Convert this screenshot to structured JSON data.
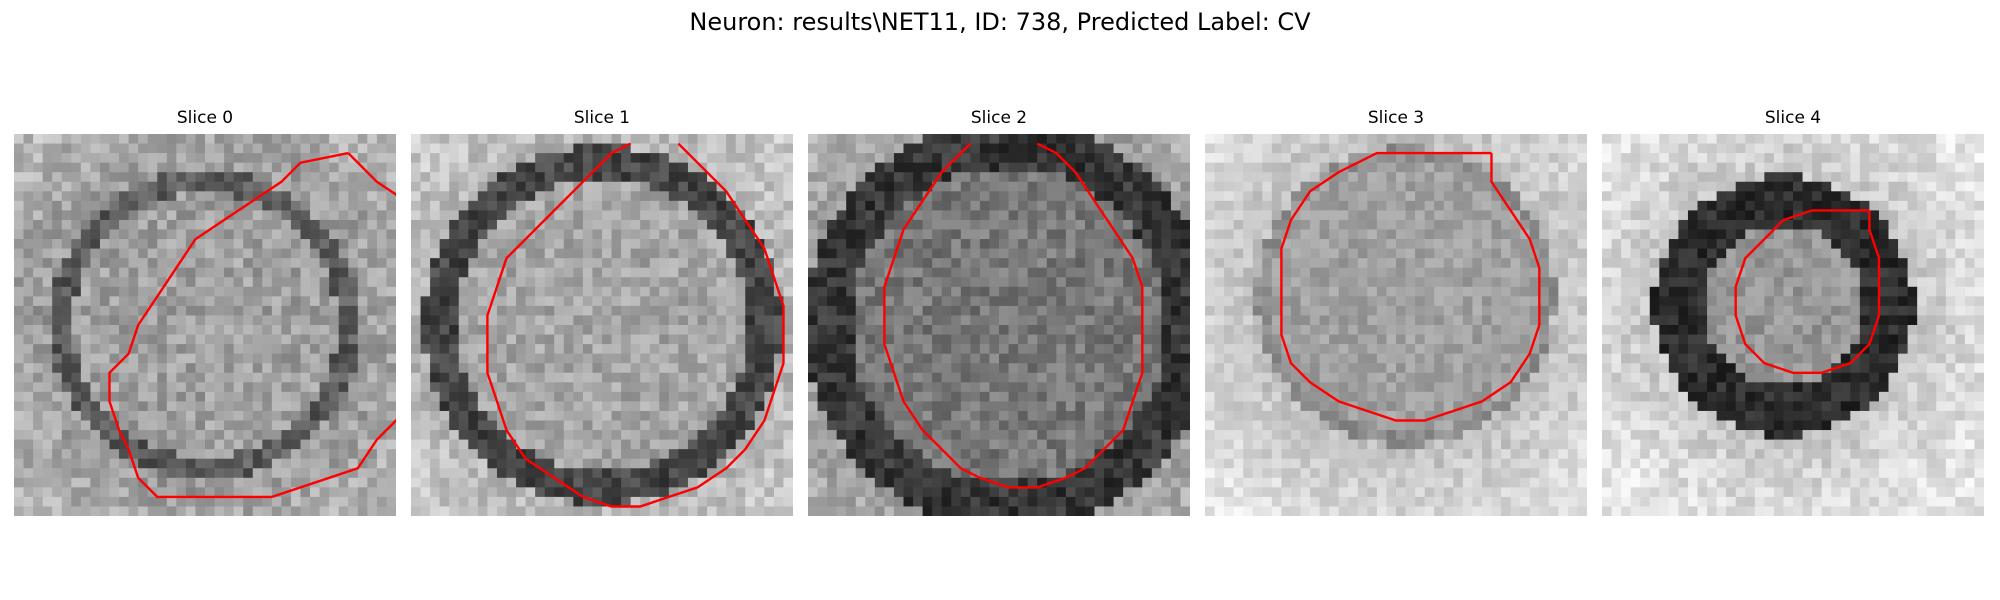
{
  "figure": {
    "title": "Neuron: results\\NET11, ID: 738, Predicted Label: CV"
  },
  "panels": [
    {
      "title": "Slice 0",
      "contour": [
        [
          35,
          2
        ],
        [
          30,
          3
        ],
        [
          28,
          5
        ],
        [
          25,
          7
        ],
        [
          22,
          9
        ],
        [
          19,
          11
        ],
        [
          17,
          14
        ],
        [
          15,
          17
        ],
        [
          13,
          20
        ],
        [
          12,
          23
        ],
        [
          10,
          25
        ],
        [
          10,
          28
        ],
        [
          11,
          31
        ],
        [
          12,
          33
        ],
        [
          13,
          36
        ],
        [
          15,
          38
        ],
        [
          18,
          38
        ],
        [
          21,
          38
        ],
        [
          24,
          38
        ],
        [
          27,
          38
        ],
        [
          30,
          37
        ],
        [
          33,
          36
        ],
        [
          36,
          35
        ],
        [
          38,
          32
        ],
        [
          40,
          30
        ],
        [
          42,
          28
        ],
        [
          44,
          26
        ],
        [
          45,
          23
        ],
        [
          45,
          20
        ],
        [
          45,
          17
        ],
        [
          45,
          14
        ],
        [
          44,
          11
        ],
        [
          43,
          9
        ],
        [
          41,
          7
        ],
        [
          38,
          5
        ],
        [
          35,
          2
        ]
      ],
      "wobble": 0.5,
      "color_name": "red"
    },
    {
      "title": "Slice 1",
      "contour": [
        [
          23,
          1
        ],
        [
          21,
          2
        ],
        [
          18,
          5
        ],
        [
          15,
          8
        ],
        [
          12,
          11
        ],
        [
          10,
          13
        ],
        [
          9,
          16
        ],
        [
          8,
          19
        ],
        [
          8,
          22
        ],
        [
          8,
          25
        ],
        [
          9,
          28
        ],
        [
          10,
          31
        ],
        [
          12,
          34
        ],
        [
          15,
          36
        ],
        [
          18,
          38
        ],
        [
          21,
          39
        ],
        [
          24,
          39
        ],
        [
          27,
          38
        ],
        [
          30,
          37
        ],
        [
          33,
          35
        ],
        [
          35,
          33
        ],
        [
          37,
          30
        ],
        [
          38,
          27
        ],
        [
          39,
          24
        ],
        [
          39,
          21
        ],
        [
          39,
          18
        ],
        [
          38,
          15
        ],
        [
          37,
          12
        ],
        [
          35,
          9
        ],
        [
          33,
          6
        ],
        [
          30,
          3
        ],
        [
          28,
          1
        ]
      ],
      "wobble": 0.5,
      "color_name": "red"
    },
    {
      "title": "Slice 2",
      "contour": [
        [
          17,
          1
        ],
        [
          14,
          4
        ],
        [
          12,
          7
        ],
        [
          10,
          10
        ],
        [
          9,
          13
        ],
        [
          8,
          16
        ],
        [
          8,
          19
        ],
        [
          8,
          22
        ],
        [
          9,
          25
        ],
        [
          10,
          28
        ],
        [
          12,
          31
        ],
        [
          14,
          33
        ],
        [
          16,
          35
        ],
        [
          18,
          36
        ],
        [
          21,
          37
        ],
        [
          24,
          37
        ],
        [
          27,
          36
        ],
        [
          29,
          35
        ],
        [
          31,
          33
        ],
        [
          33,
          31
        ],
        [
          34,
          28
        ],
        [
          35,
          25
        ],
        [
          35,
          22
        ],
        [
          35,
          19
        ],
        [
          35,
          16
        ],
        [
          34,
          13
        ],
        [
          32,
          10
        ],
        [
          30,
          7
        ],
        [
          28,
          4
        ],
        [
          26,
          2
        ],
        [
          24,
          1
        ]
      ],
      "wobble": 0.6,
      "color_name": "red"
    },
    {
      "title": "Slice 3",
      "contour": [
        [
          30,
          2
        ],
        [
          24,
          2
        ],
        [
          18,
          2
        ],
        [
          14,
          4
        ],
        [
          11,
          6
        ],
        [
          9,
          9
        ],
        [
          8,
          12
        ],
        [
          8,
          15
        ],
        [
          8,
          18
        ],
        [
          8,
          21
        ],
        [
          9,
          24
        ],
        [
          11,
          26
        ],
        [
          14,
          28
        ],
        [
          17,
          29
        ],
        [
          20,
          30
        ],
        [
          23,
          30
        ],
        [
          26,
          29
        ],
        [
          29,
          28
        ],
        [
          32,
          26
        ],
        [
          34,
          23
        ],
        [
          35,
          20
        ],
        [
          35,
          17
        ],
        [
          35,
          14
        ],
        [
          34,
          11
        ],
        [
          32,
          8
        ],
        [
          30,
          5
        ],
        [
          30,
          2
        ]
      ],
      "wobble": 0.4,
      "color_name": "red"
    },
    {
      "title": "Slice 4",
      "contour": [
        [
          28,
          8
        ],
        [
          25,
          8
        ],
        [
          22,
          8
        ],
        [
          19,
          9
        ],
        [
          17,
          11
        ],
        [
          15,
          13
        ],
        [
          14,
          16
        ],
        [
          14,
          19
        ],
        [
          15,
          22
        ],
        [
          17,
          24
        ],
        [
          20,
          25
        ],
        [
          23,
          25
        ],
        [
          26,
          24
        ],
        [
          28,
          22
        ],
        [
          29,
          19
        ],
        [
          29,
          16
        ],
        [
          29,
          13
        ],
        [
          28,
          10
        ],
        [
          28,
          8
        ]
      ],
      "wobble": 0.4,
      "color_name": "red"
    }
  ],
  "style": {
    "contour_color": "#ff0000",
    "image_colormap": "grayscale"
  }
}
